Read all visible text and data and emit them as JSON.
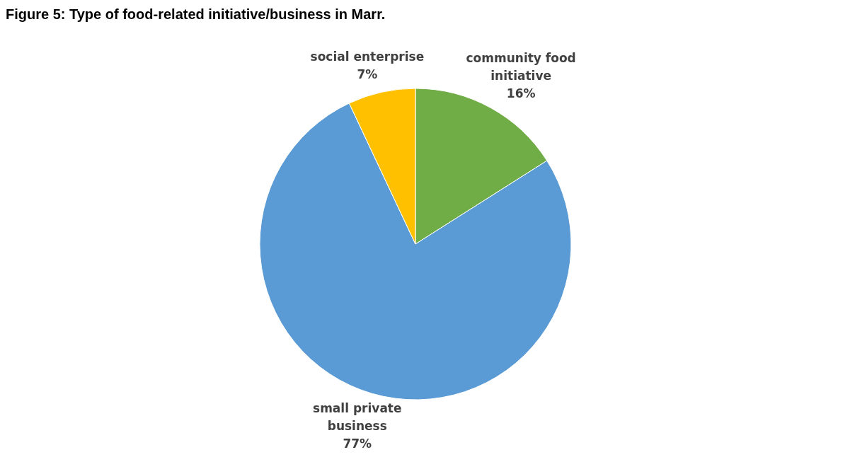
{
  "chart_data": {
    "type": "pie",
    "title": "Figure 5: Type of food-related initiative/business in Marr.",
    "categories": [
      "community food initiative",
      "small private business",
      "social enterprise"
    ],
    "values": [
      16,
      77,
      7
    ],
    "colors": [
      "#70ad47",
      "#5b9bd5",
      "#ffc000"
    ],
    "value_labels": [
      "16%",
      "77%",
      "7%"
    ],
    "legend": false
  }
}
